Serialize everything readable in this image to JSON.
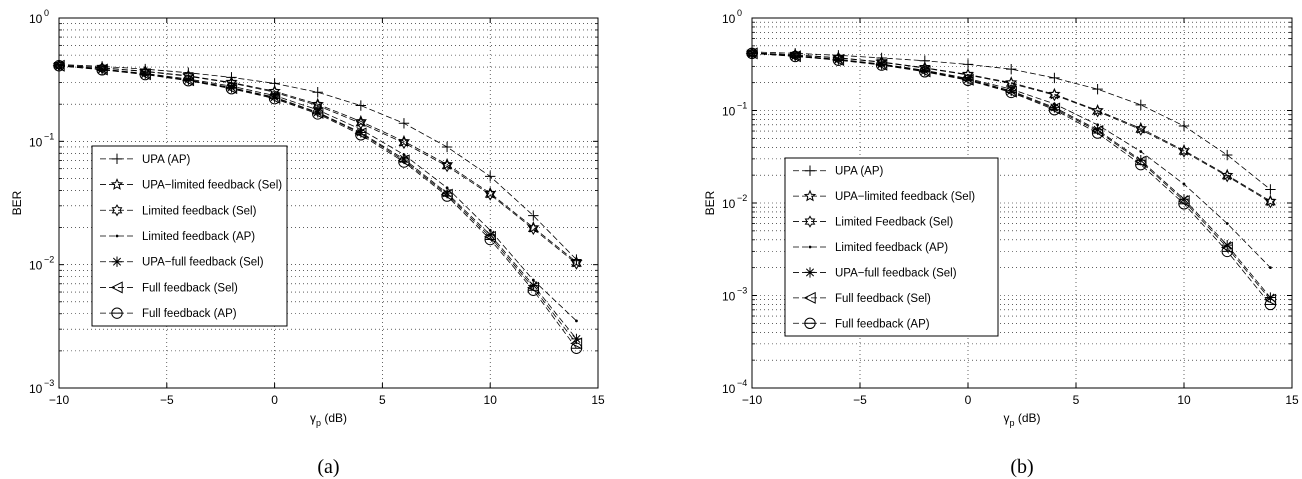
{
  "chart_data": [
    {
      "type": "line",
      "caption": "(a)",
      "ylabel": "BER",
      "xlabel": "γp (dB)",
      "xlim": [
        -10,
        15
      ],
      "ylim": [
        0.001,
        1
      ],
      "yscale": "log",
      "grid": true,
      "legend_position": "center-left",
      "x_ticks": [
        "−10",
        "−5",
        "0",
        "5",
        "10",
        "15"
      ],
      "y_ticks": [
        "10",
        "10",
        "10",
        "10"
      ],
      "y_tick_exponents": [
        "0",
        "−1",
        "−2",
        "−3"
      ],
      "x": [
        -10,
        -8,
        -6,
        -4,
        -2,
        0,
        2,
        4,
        6,
        8,
        10,
        12,
        14
      ],
      "series": [
        {
          "name": "UPA (AP)",
          "marker": "plus",
          "values": [
            0.42,
            0.405,
            0.385,
            0.36,
            0.33,
            0.295,
            0.25,
            0.195,
            0.14,
            0.09,
            0.052,
            0.025,
            0.011
          ]
        },
        {
          "name": "UPA−limited feedback (Sel)",
          "marker": "star",
          "values": [
            0.415,
            0.395,
            0.37,
            0.34,
            0.3,
            0.255,
            0.2,
            0.145,
            0.1,
            0.065,
            0.038,
            0.02,
            0.0105
          ]
        },
        {
          "name": "Limited feedback (Sel)",
          "marker": "hexagram",
          "values": [
            0.415,
            0.393,
            0.368,
            0.337,
            0.297,
            0.25,
            0.195,
            0.14,
            0.097,
            0.063,
            0.037,
            0.0195,
            0.0102
          ]
        },
        {
          "name": "Limited feedback (AP)",
          "marker": "dot",
          "values": [
            0.41,
            0.385,
            0.355,
            0.32,
            0.28,
            0.235,
            0.18,
            0.125,
            0.078,
            0.042,
            0.019,
            0.0075,
            0.0035
          ]
        },
        {
          "name": "UPA−full feedback (Sel)",
          "marker": "asterisk",
          "values": [
            0.41,
            0.383,
            0.352,
            0.315,
            0.273,
            0.228,
            0.172,
            0.118,
            0.072,
            0.038,
            0.0175,
            0.0068,
            0.0025
          ]
        },
        {
          "name": "Full feedback (Sel)",
          "marker": "triangle-left",
          "values": [
            0.41,
            0.382,
            0.35,
            0.313,
            0.27,
            0.225,
            0.17,
            0.116,
            0.07,
            0.037,
            0.0168,
            0.0065,
            0.0023
          ]
        },
        {
          "name": "Full feedback (AP)",
          "marker": "circle",
          "values": [
            0.41,
            0.38,
            0.348,
            0.31,
            0.267,
            0.222,
            0.167,
            0.113,
            0.068,
            0.036,
            0.016,
            0.0062,
            0.0021
          ]
        }
      ]
    },
    {
      "type": "line",
      "caption": "(b)",
      "ylabel": "BER",
      "xlabel": "γp (dB)",
      "xlim": [
        -10,
        15
      ],
      "ylim": [
        0.0001,
        1
      ],
      "yscale": "log",
      "grid": true,
      "legend_position": "center-left",
      "x_ticks": [
        "−10",
        "−5",
        "0",
        "5",
        "10",
        "15"
      ],
      "y_ticks": [
        "10",
        "10",
        "10",
        "10",
        "10"
      ],
      "y_tick_exponents": [
        "0",
        "−1",
        "−2",
        "−3",
        "−4"
      ],
      "x": [
        -10,
        -8,
        -6,
        -4,
        -2,
        0,
        2,
        4,
        6,
        8,
        10,
        12,
        14
      ],
      "series": [
        {
          "name": "UPA (AP)",
          "marker": "plus",
          "values": [
            0.43,
            0.415,
            0.395,
            0.37,
            0.345,
            0.315,
            0.28,
            0.225,
            0.17,
            0.115,
            0.068,
            0.033,
            0.014
          ]
        },
        {
          "name": "UPA−limited feedback (Sel)",
          "marker": "star",
          "values": [
            0.42,
            0.4,
            0.372,
            0.335,
            0.29,
            0.245,
            0.2,
            0.15,
            0.1,
            0.064,
            0.037,
            0.02,
            0.0105
          ]
        },
        {
          "name": "Limited Feedback (Sel)",
          "marker": "hexagram",
          "values": [
            0.42,
            0.398,
            0.37,
            0.332,
            0.287,
            0.242,
            0.196,
            0.147,
            0.098,
            0.062,
            0.036,
            0.0195,
            0.0102
          ]
        },
        {
          "name": "Limited feedback (AP)",
          "marker": "dot",
          "values": [
            0.415,
            0.39,
            0.358,
            0.318,
            0.272,
            0.222,
            0.17,
            0.118,
            0.07,
            0.036,
            0.016,
            0.006,
            0.002
          ]
        },
        {
          "name": "UPA−full feedback (Sel)",
          "marker": "asterisk",
          "values": [
            0.415,
            0.388,
            0.355,
            0.315,
            0.268,
            0.218,
            0.163,
            0.108,
            0.062,
            0.029,
            0.011,
            0.0035,
            0.00095
          ]
        },
        {
          "name": "Full feedback (Sel)",
          "marker": "triangle-left",
          "values": [
            0.415,
            0.386,
            0.352,
            0.312,
            0.265,
            0.215,
            0.16,
            0.105,
            0.06,
            0.028,
            0.0105,
            0.0033,
            0.0009
          ]
        },
        {
          "name": "Full feedback (AP)",
          "marker": "circle",
          "values": [
            0.415,
            0.384,
            0.35,
            0.31,
            0.262,
            0.212,
            0.157,
            0.102,
            0.057,
            0.026,
            0.0098,
            0.003,
            0.0008
          ]
        }
      ]
    }
  ]
}
